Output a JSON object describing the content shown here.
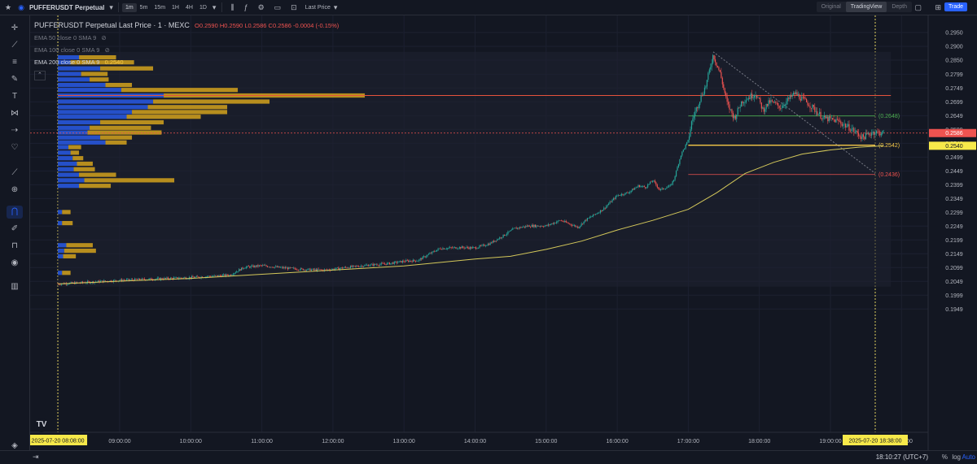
{
  "topbar": {
    "symbol": "PUFFERUSDT Perpetual",
    "timeframes": [
      "1m",
      "5m",
      "15m",
      "1H",
      "4H",
      "1D"
    ],
    "active_timeframe": "1m",
    "price_source": "Last Price",
    "views": [
      "Original",
      "TradingView",
      "Depth"
    ],
    "active_view": "TradingView",
    "trade_label": "Trade"
  },
  "legend": {
    "title": "PUFFERUSDT Perpetual Last Price · 1 · MEXC",
    "open": "O0.2590",
    "high": "H0.2590",
    "low": "L0.2586",
    "close": "C0.2586",
    "change": "-0.0004 (-0.15%)",
    "ema50": "EMA 50 close 0 SMA 9",
    "ema100": "EMA 100 close 0 SMA 9",
    "ema200": "EMA 200 close 0 SMA 9",
    "ema200_value": "0.2540"
  },
  "bottombar": {
    "clock": "18:10:27 (UTC+7)",
    "percent": "%",
    "log": "log",
    "auto": "Auto"
  },
  "colors": {
    "background": "#131722",
    "up": "#26a69a",
    "down": "#ef5350",
    "ema": "#d4c85a",
    "volume_profile_up": "#2962ff",
    "volume_profile_down": "#d4a21c"
  },
  "chart_data": {
    "type": "candlestick",
    "y_ticks": [
      "0.2950",
      "0.2900",
      "0.2850",
      "0.2799",
      "0.2749",
      "0.2699",
      "0.2649",
      "0.2599",
      "0.2549",
      "0.2499",
      "0.2449",
      "0.2399",
      "0.2349",
      "0.2299",
      "0.2249",
      "0.2199",
      "0.2149",
      "0.2099",
      "0.2049",
      "0.1999",
      "0.1949"
    ],
    "x_ticks": [
      "09:00:00",
      "10:00:00",
      "11:00:00",
      "12:00:00",
      "13:00:00",
      "14:00:00",
      "15:00:00",
      "16:00:00",
      "17:00:00",
      "18:00:00",
      "19:00:00",
      "20:00:00"
    ],
    "x_start_label": "2025-07-20   08:08:00",
    "x_cursor_label": "2025-07-20   18:38:00",
    "last_price": "0.2586",
    "ema200_last": "0.2540",
    "levels": [
      {
        "label": "(0.2648)",
        "value": 0.2648,
        "color": "#4caf50"
      },
      {
        "label": "(0.2542)",
        "value": 0.2542,
        "color": "#f7c948"
      },
      {
        "label": "(0.2436)",
        "value": 0.2436,
        "color": "#ef5350"
      }
    ],
    "poc_price": 0.2722,
    "price_path": [
      [
        8.13,
        0.204
      ],
      [
        8.5,
        0.2045
      ],
      [
        9.0,
        0.2053
      ],
      [
        9.5,
        0.2058
      ],
      [
        10.0,
        0.2063
      ],
      [
        10.3,
        0.2068
      ],
      [
        10.55,
        0.2072
      ],
      [
        10.75,
        0.21
      ],
      [
        11.0,
        0.2106
      ],
      [
        11.3,
        0.2098
      ],
      [
        11.6,
        0.2092
      ],
      [
        11.9,
        0.209
      ],
      [
        12.2,
        0.21
      ],
      [
        12.5,
        0.2108
      ],
      [
        12.8,
        0.2114
      ],
      [
        13.0,
        0.2122
      ],
      [
        13.2,
        0.2125
      ],
      [
        13.3,
        0.214
      ],
      [
        13.5,
        0.2168
      ],
      [
        13.8,
        0.2172
      ],
      [
        14.0,
        0.217
      ],
      [
        14.2,
        0.2185
      ],
      [
        14.4,
        0.2215
      ],
      [
        14.55,
        0.224
      ],
      [
        14.75,
        0.225
      ],
      [
        15.0,
        0.225
      ],
      [
        15.2,
        0.227
      ],
      [
        15.45,
        0.2245
      ],
      [
        15.55,
        0.227
      ],
      [
        15.8,
        0.231
      ],
      [
        16.0,
        0.236
      ],
      [
        16.15,
        0.237
      ],
      [
        16.3,
        0.2395
      ],
      [
        16.4,
        0.239
      ],
      [
        16.5,
        0.2415
      ],
      [
        16.6,
        0.238
      ],
      [
        16.75,
        0.2395
      ],
      [
        16.8,
        0.242
      ],
      [
        16.9,
        0.251
      ],
      [
        17.0,
        0.256
      ],
      [
        17.05,
        0.263
      ],
      [
        17.15,
        0.27
      ],
      [
        17.25,
        0.276
      ],
      [
        17.35,
        0.287
      ],
      [
        17.45,
        0.28
      ],
      [
        17.55,
        0.269
      ],
      [
        17.65,
        0.264
      ],
      [
        17.75,
        0.27
      ],
      [
        17.95,
        0.273
      ],
      [
        18.05,
        0.267
      ],
      [
        18.15,
        0.27
      ],
      [
        18.3,
        0.268
      ],
      [
        18.5,
        0.273
      ],
      [
        18.7,
        0.269
      ],
      [
        18.9,
        0.264
      ],
      [
        19.1,
        0.263
      ],
      [
        19.3,
        0.26
      ],
      [
        19.45,
        0.257
      ],
      [
        19.6,
        0.259
      ],
      [
        19.75,
        0.2586
      ]
    ],
    "ema200_path": [
      [
        8.13,
        0.204
      ],
      [
        9.0,
        0.205
      ],
      [
        10.0,
        0.206
      ],
      [
        11.0,
        0.2075
      ],
      [
        12.0,
        0.209
      ],
      [
        13.0,
        0.2105
      ],
      [
        14.0,
        0.213
      ],
      [
        14.5,
        0.214
      ],
      [
        15.0,
        0.2165
      ],
      [
        15.5,
        0.2195
      ],
      [
        16.0,
        0.2235
      ],
      [
        16.5,
        0.227
      ],
      [
        17.0,
        0.231
      ],
      [
        17.4,
        0.237
      ],
      [
        17.8,
        0.244
      ],
      [
        18.2,
        0.248
      ],
      [
        18.6,
        0.251
      ],
      [
        19.0,
        0.2525
      ],
      [
        19.4,
        0.2535
      ],
      [
        19.75,
        0.254
      ]
    ],
    "volume_profile": [
      {
        "price": 0.286,
        "up": 0.02,
        "down": 0.035
      },
      {
        "price": 0.2842,
        "up": 0.012,
        "down": 0.06
      },
      {
        "price": 0.282,
        "up": 0.04,
        "down": 0.05
      },
      {
        "price": 0.28,
        "up": 0.022,
        "down": 0.025
      },
      {
        "price": 0.278,
        "up": 0.03,
        "down": 0.018
      },
      {
        "price": 0.276,
        "up": 0.045,
        "down": 0.025
      },
      {
        "price": 0.2742,
        "up": 0.06,
        "down": 0.11
      },
      {
        "price": 0.2722,
        "up": 0.1,
        "down": 0.19
      },
      {
        "price": 0.27,
        "up": 0.09,
        "down": 0.11
      },
      {
        "price": 0.268,
        "up": 0.085,
        "down": 0.075
      },
      {
        "price": 0.2662,
        "up": 0.07,
        "down": 0.09
      },
      {
        "price": 0.2645,
        "up": 0.065,
        "down": 0.07
      },
      {
        "price": 0.2625,
        "up": 0.04,
        "down": 0.06
      },
      {
        "price": 0.2605,
        "up": 0.03,
        "down": 0.058
      },
      {
        "price": 0.2588,
        "up": 0.028,
        "down": 0.07
      },
      {
        "price": 0.257,
        "up": 0.04,
        "down": 0.03
      },
      {
        "price": 0.2552,
        "up": 0.045,
        "down": 0.02
      },
      {
        "price": 0.2535,
        "up": 0.01,
        "down": 0.012
      },
      {
        "price": 0.2515,
        "up": 0.012,
        "down": 0.008
      },
      {
        "price": 0.2495,
        "up": 0.014,
        "down": 0.01
      },
      {
        "price": 0.2475,
        "up": 0.018,
        "down": 0.015
      },
      {
        "price": 0.2455,
        "up": 0.015,
        "down": 0.02
      },
      {
        "price": 0.2435,
        "up": 0.02,
        "down": 0.035
      },
      {
        "price": 0.2415,
        "up": 0.025,
        "down": 0.085
      },
      {
        "price": 0.2395,
        "up": 0.02,
        "down": 0.03
      },
      {
        "price": 0.23,
        "up": 0.004,
        "down": 0.008
      },
      {
        "price": 0.226,
        "up": 0.004,
        "down": 0.01
      },
      {
        "price": 0.218,
        "up": 0.008,
        "down": 0.025
      },
      {
        "price": 0.216,
        "up": 0.006,
        "down": 0.03
      },
      {
        "price": 0.214,
        "up": 0.005,
        "down": 0.012
      },
      {
        "price": 0.208,
        "up": 0.004,
        "down": 0.008
      }
    ]
  }
}
